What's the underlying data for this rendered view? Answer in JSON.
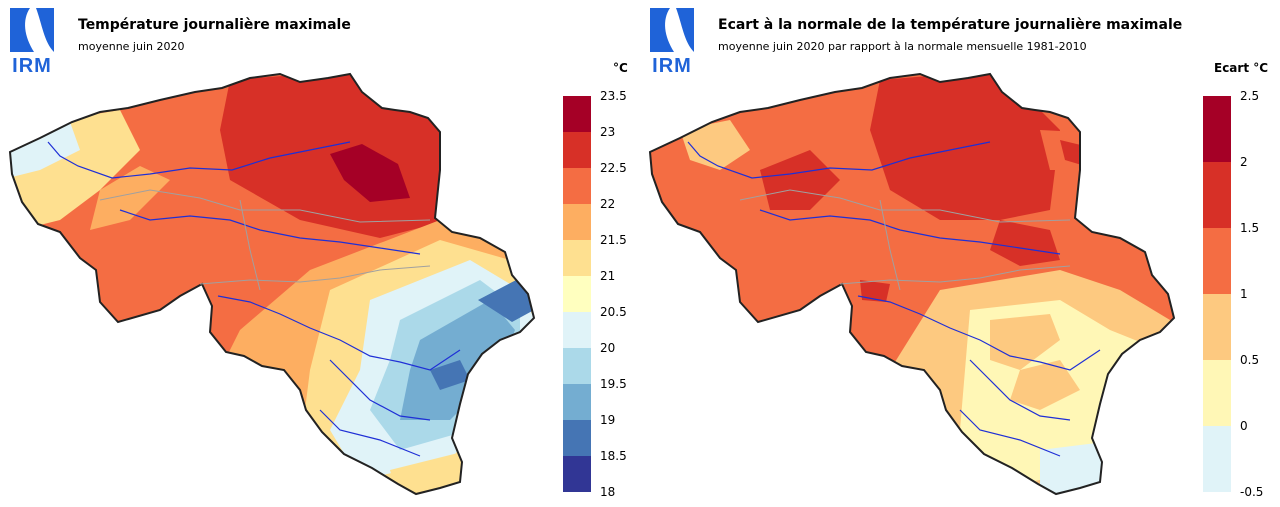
{
  "panels": [
    {
      "logo": "IRM",
      "title": "Température journalière maximale",
      "subtitle": "moyenne juin 2020",
      "legend": {
        "unit": "°C",
        "labels": [
          "23.5",
          "23",
          "22.5",
          "22",
          "21.5",
          "21",
          "20.5",
          "20",
          "19.5",
          "19",
          "18.5",
          "18"
        ],
        "colors": [
          "#a50026",
          "#d73027",
          "#f46d43",
          "#fdae61",
          "#fee090",
          "#ffffbf",
          "#e0f3f8",
          "#abd9e9",
          "#74add1",
          "#4575b4",
          "#313695"
        ]
      }
    },
    {
      "logo": "IRM",
      "title": "Ecart à la normale de la température journalière maximale",
      "subtitle": "moyenne juin 2020 par rapport à la normale mensuelle 1981-2010",
      "legend": {
        "unit": "Ecart °C",
        "labels": [
          "2.5",
          "2",
          "1.5",
          "1",
          "0.5",
          "0",
          "-0.5"
        ],
        "colors": [
          "#a50026",
          "#d73027",
          "#f46d43",
          "#fdc980",
          "#fff7b6",
          "#e0f3f8"
        ]
      }
    }
  ]
}
